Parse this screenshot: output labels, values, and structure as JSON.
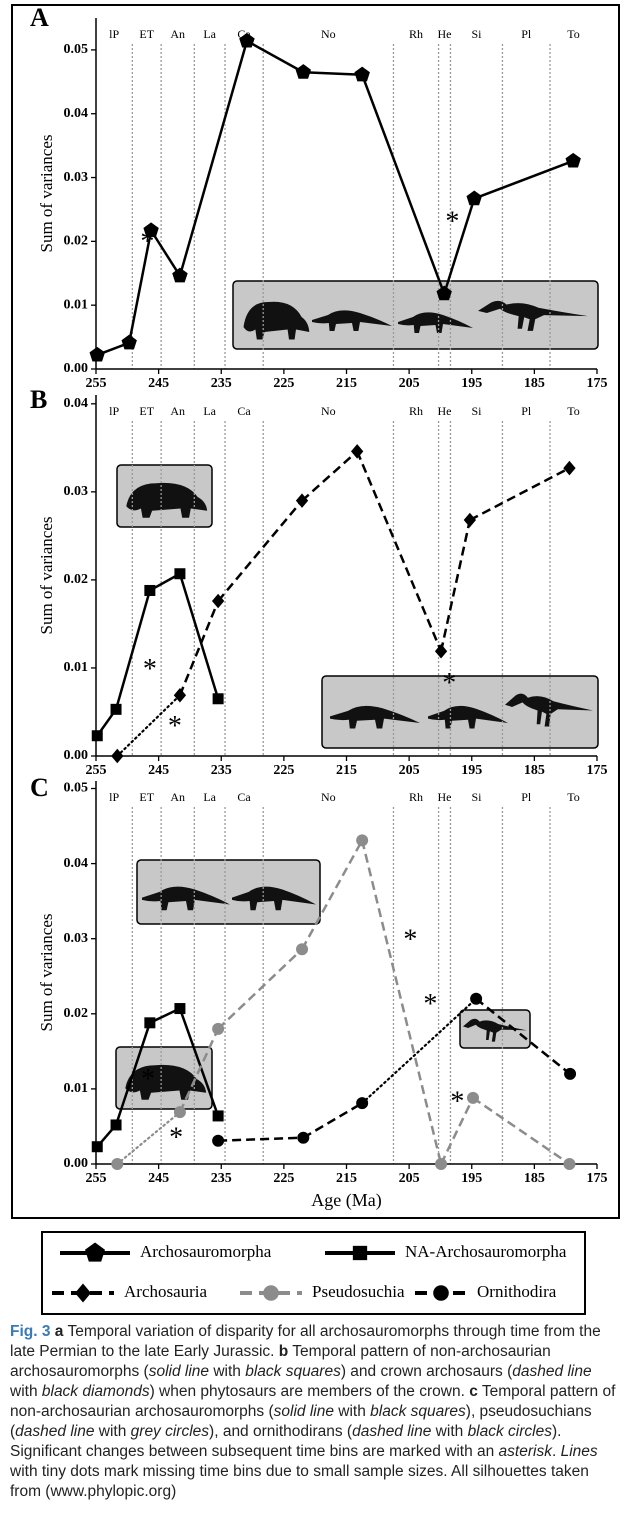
{
  "chart_data": [
    {
      "type": "line",
      "label": "A",
      "ylabel": "Sum of variances",
      "xlim": [
        255,
        175
      ],
      "xticks": [
        255,
        245,
        235,
        225,
        215,
        205,
        195,
        185,
        175
      ],
      "ylim": [
        0,
        0.055
      ],
      "yticks": [
        {
          "value": 0,
          "label": "0.00"
        },
        0.01,
        0.02,
        0.03,
        0.04,
        0.05
      ],
      "stages": [
        "lP",
        "ET",
        "An",
        "La",
        "Ca",
        "No",
        "Rh",
        "He",
        "Si",
        "Pl",
        "To"
      ],
      "stage_boundaries": [
        249.2,
        244.6,
        239.3,
        234.4,
        228.3,
        207.5,
        200.3,
        198.4,
        190.1,
        182.5
      ],
      "series": [
        {
          "name": "Archosauromorpha",
          "color": "#000000",
          "marker": "pentagon",
          "linestyle": "solid",
          "x": [
            254.8,
            249.7,
            246.2,
            241.6,
            230.9,
            221.9,
            212.5,
            199.4,
            194.6,
            178.8
          ],
          "values": [
            0.0022,
            0.0041,
            0.0217,
            0.0146,
            0.0514,
            0.0465,
            0.0461,
            0.0118,
            0.0267,
            0.0326
          ]
        }
      ],
      "annotations": [
        {
          "text": "*",
          "x": 246.8,
          "y": 0.0207,
          "color": "#000000"
        },
        {
          "text": "*",
          "x": 198.1,
          "y": 0.0238,
          "color": "#000000"
        }
      ]
    },
    {
      "type": "line",
      "label": "B",
      "ylabel": "Sum of variances",
      "xlim": [
        255,
        175
      ],
      "xticks": [
        255,
        245,
        235,
        225,
        215,
        205,
        195,
        185,
        175
      ],
      "ylim": [
        0,
        0.041
      ],
      "yticks": [
        {
          "value": 0,
          "label": "0.00"
        },
        0.01,
        0.02,
        0.03,
        0.04
      ],
      "stages": [
        "lP",
        "ET",
        "An",
        "La",
        "Ca",
        "No",
        "Rh",
        "He",
        "Si",
        "Pl",
        "To"
      ],
      "stage_boundaries": [
        249.2,
        244.6,
        239.3,
        234.4,
        228.3,
        207.5,
        200.3,
        198.4,
        190.1,
        182.5
      ],
      "series": [
        {
          "name": "NA-Archosauromorpha",
          "color": "#000000",
          "marker": "square",
          "linestyle": "solid",
          "x": [
            254.8,
            251.8,
            246.4,
            241.6,
            235.5
          ],
          "values": [
            0.0023,
            0.0053,
            0.0188,
            0.0207,
            0.0065
          ]
        },
        {
          "name": "Archosauria",
          "color": "#000000",
          "marker": "diamond",
          "linestyle": "dashed",
          "dotted_segments": [
            0
          ],
          "x": [
            251.6,
            241.6,
            235.5,
            222.1,
            213.3,
            199.9,
            195.3,
            179.4
          ],
          "values": [
            0,
            0.0069,
            0.0176,
            0.029,
            0.0346,
            0.0119,
            0.0268,
            0.0327
          ]
        }
      ],
      "annotations": [
        {
          "text": "*",
          "x": 246.4,
          "y": 0.0104,
          "color": "#000000"
        },
        {
          "text": "*",
          "x": 242.4,
          "y": 0.0039,
          "color": "#000000"
        },
        {
          "text": "*",
          "x": 198.6,
          "y": 0.0088,
          "color": "#000000"
        }
      ]
    },
    {
      "type": "line",
      "label": "C",
      "ylabel": "Sum of variances",
      "xlabel": "Age (Ma)",
      "xlim": [
        255,
        175
      ],
      "xticks": [
        255,
        245,
        235,
        225,
        215,
        205,
        195,
        185,
        175
      ],
      "ylim": [
        0,
        0.051
      ],
      "yticks": [
        {
          "value": 0,
          "label": "0.00"
        },
        0.01,
        0.02,
        0.03,
        0.04,
        0.05
      ],
      "stages": [
        "lP",
        "ET",
        "An",
        "La",
        "Ca",
        "No",
        "Rh",
        "He",
        "Si",
        "Pl",
        "To"
      ],
      "stage_boundaries": [
        249.2,
        244.6,
        239.3,
        234.4,
        228.3,
        207.5,
        200.3,
        198.4,
        190.1,
        182.5
      ],
      "series": [
        {
          "name": "NA-Archosauromorpha",
          "color": "#000000",
          "marker": "square",
          "linestyle": "solid",
          "x": [
            254.8,
            251.8,
            246.4,
            241.6,
            235.5
          ],
          "values": [
            0.0023,
            0.0052,
            0.0188,
            0.0207,
            0.0064
          ]
        },
        {
          "name": "Pseudosuchia",
          "color": "#8c8c8c",
          "marker": "circle",
          "linestyle": "dashed",
          "dotted_segments": [
            0
          ],
          "x": [
            251.6,
            241.6,
            235.5,
            222.1,
            212.5,
            199.9,
            194.8,
            179.4
          ],
          "values": [
            0,
            0.0069,
            0.018,
            0.0286,
            0.0431,
            0,
            0.0088,
            0
          ]
        },
        {
          "name": "Ornithodira",
          "color": "#000000",
          "marker": "circle",
          "linestyle": "dashed",
          "dotted_segments": [
            2
          ],
          "x": [
            235.5,
            221.9,
            212.5,
            194.3,
            179.3
          ],
          "values": [
            0.0031,
            0.0035,
            0.0081,
            0.022,
            0.012
          ]
        }
      ],
      "annotations": [
        {
          "text": "*",
          "x": 246.7,
          "y": 0.0119,
          "color": "#000000"
        },
        {
          "text": "*",
          "x": 242.2,
          "y": 0.0041,
          "color": "#8c8c8c"
        },
        {
          "text": "*",
          "x": 204.8,
          "y": 0.0305,
          "color": "#8c8c8c"
        },
        {
          "text": "*",
          "x": 201.6,
          "y": 0.0219,
          "color": "#000000"
        },
        {
          "text": "*",
          "x": 197.3,
          "y": 0.0089,
          "color": "#8c8c8c"
        }
      ]
    }
  ],
  "caption": [
    {
      "text": "Fig. 3",
      "style": "label"
    },
    {
      "text": " a",
      "style": "bold"
    },
    {
      "text": " Temporal variation of disparity for all archosauromorphs through time from the late Permian to the late Early Jurassic. ",
      "style": "normal"
    },
    {
      "text": "b",
      "style": "bold"
    },
    {
      "text": " Temporal pattern of non-archosaurian archosauromorphs (",
      "style": "normal"
    },
    {
      "text": "solid line",
      "style": "italic"
    },
    {
      "text": " with ",
      "style": "normal"
    },
    {
      "text": "black squares",
      "style": "italic"
    },
    {
      "text": ") and crown archosaurs (",
      "style": "normal"
    },
    {
      "text": "dashed line",
      "style": "italic"
    },
    {
      "text": " with ",
      "style": "normal"
    },
    {
      "text": "black diamonds",
      "style": "italic"
    },
    {
      "text": ") when phytosaurs are members of the crown. ",
      "style": "normal"
    },
    {
      "text": "c",
      "style": "bold"
    },
    {
      "text": " Temporal pattern of non-archosaurian archosauromorphs (",
      "style": "normal"
    },
    {
      "text": "solid line",
      "style": "italic"
    },
    {
      "text": " with ",
      "style": "normal"
    },
    {
      "text": "black squares",
      "style": "italic"
    },
    {
      "text": "), pseudosuchians (",
      "style": "normal"
    },
    {
      "text": "dashed line",
      "style": "italic"
    },
    {
      "text": " with ",
      "style": "normal"
    },
    {
      "text": "grey circles",
      "style": "italic"
    },
    {
      "text": "), and ornithodirans (",
      "style": "normal"
    },
    {
      "text": "dashed line",
      "style": "italic"
    },
    {
      "text": " with ",
      "style": "normal"
    },
    {
      "text": "black circles",
      "style": "italic"
    },
    {
      "text": "). Significant changes between subsequent time bins are marked with an ",
      "style": "normal"
    },
    {
      "text": "asterisk",
      "style": "italic"
    },
    {
      "text": ". ",
      "style": "normal"
    },
    {
      "text": "Lines",
      "style": "italic"
    },
    {
      "text": " with tiny dots mark missing time bins due to small sample sizes. All silhouettes taken from (www.phylopic.org)",
      "style": "normal"
    }
  ]
}
